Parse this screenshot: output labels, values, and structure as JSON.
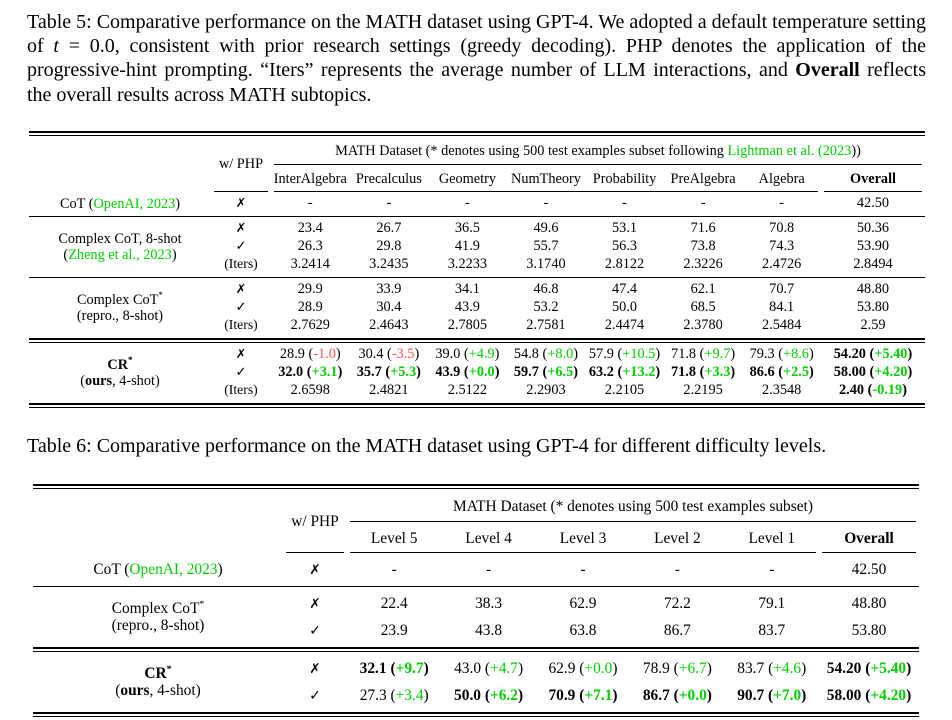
{
  "colors": {
    "green": "#00cf00",
    "red": "#ff5555",
    "text": "#000000",
    "background": "#ffffff"
  },
  "caption_table5": {
    "part1": "Table 5: Comparative performance on the MATH dataset using GPT-4. We adopted a default temperature setting of ",
    "t_var": "t",
    "part2": " = 0.0, consistent with prior research settings (greedy decoding). PHP denotes the application of the progressive-hint prompting. “Iters” represents the average number of LLM interactions, and ",
    "overall_word": "Overall",
    "part3": " reflects the overall results across MATH subtopics."
  },
  "caption_table6": "Table 6: Comparative performance on the MATH dataset using GPT-4 for different difficulty levels.",
  "marks": {
    "x": "✗",
    "c": "✓",
    "i": "(Iters)"
  },
  "table5": {
    "php_header": "w/ PHP",
    "dataset_header": [
      {
        "t": "MATH Dataset (* denotes using 500 test examples subset following "
      },
      {
        "t": "Lightman et al. (2023",
        "green": true
      },
      {
        "t": "))"
      }
    ],
    "columns": [
      "InterAlgebra",
      "Precalculus",
      "Geometry",
      "NumTheory",
      "Probability",
      "PreAlgebra",
      "Algebra"
    ],
    "overall_label": "Overall",
    "groups": [
      {
        "sep": "none",
        "label": [
          [
            {
              "t": "CoT ("
            },
            {
              "t": "OpenAI, 2023",
              "green": true
            },
            {
              "t": ")"
            }
          ]
        ],
        "rows": [
          {
            "m": "x",
            "cells": [
              "-",
              "-",
              "-",
              "-",
              "-",
              "-",
              "-",
              "42.50"
            ]
          }
        ]
      },
      {
        "sep": "single",
        "label": [
          [
            {
              "t": "Complex CoT, 8-shot"
            }
          ],
          [
            {
              "t": "("
            },
            {
              "t": "Zheng et al., 2023",
              "green": true
            },
            {
              "t": ")"
            }
          ]
        ],
        "rows": [
          {
            "m": "x",
            "cells": [
              "23.4",
              "26.7",
              "36.5",
              "49.6",
              "53.1",
              "71.6",
              "70.8",
              "50.36"
            ]
          },
          {
            "m": "c",
            "cells": [
              "26.3",
              "29.8",
              "41.9",
              "55.7",
              "56.3",
              "73.8",
              "74.3",
              "53.90"
            ]
          },
          {
            "m": "i",
            "cells": [
              "3.2414",
              "3.2435",
              "3.2233",
              "3.1740",
              "2.8122",
              "2.3226",
              "2.4726",
              "2.8494"
            ]
          }
        ]
      },
      {
        "sep": "single",
        "label": [
          [
            {
              "t": "Complex CoT"
            },
            {
              "t": "*",
              "sup": true
            }
          ],
          [
            {
              "t": "(repro., 8-shot)"
            }
          ]
        ],
        "rows": [
          {
            "m": "x",
            "cells": [
              "29.9",
              "33.9",
              "34.1",
              "46.8",
              "47.4",
              "62.1",
              "70.7",
              "48.80"
            ]
          },
          {
            "m": "c",
            "cells": [
              "28.9",
              "30.4",
              "43.9",
              "53.2",
              "50.0",
              "68.5",
              "84.1",
              "53.80"
            ]
          },
          {
            "m": "i",
            "cells": [
              "2.7629",
              "2.4643",
              "2.7805",
              "2.7581",
              "2.4474",
              "2.3780",
              "2.5484",
              "2.59"
            ]
          }
        ]
      },
      {
        "sep": "double",
        "label": [
          [
            {
              "t": "CR",
              "bold": true
            },
            {
              "t": "*",
              "sup": true,
              "bold": true
            }
          ],
          [
            {
              "t": "("
            },
            {
              "t": "ours",
              "bold": true
            },
            {
              "t": ", 4-shot)"
            }
          ]
        ],
        "rows": [
          {
            "m": "x",
            "cells": [
              {
                "v": "28.9",
                "d": "-1.0",
                "dc": "r"
              },
              {
                "v": "30.4",
                "d": "-3.5",
                "dc": "r"
              },
              {
                "v": "39.0",
                "d": "+4.9",
                "dc": "g"
              },
              {
                "v": "54.8",
                "d": "+8.0",
                "dc": "g"
              },
              {
                "v": "57.9",
                "d": "+10.5",
                "dc": "g"
              },
              {
                "v": "71.8",
                "d": "+9.7",
                "dc": "g"
              },
              {
                "v": "79.3",
                "d": "+8.6",
                "dc": "g"
              },
              {
                "v": "54.20",
                "b": true,
                "d": "+5.40",
                "dc": "g"
              }
            ]
          },
          {
            "m": "c",
            "cells": [
              {
                "v": "32.0",
                "b": true,
                "d": "+3.1",
                "dc": "g"
              },
              {
                "v": "35.7",
                "b": true,
                "d": "+5.3",
                "dc": "g"
              },
              {
                "v": "43.9",
                "b": true,
                "d": "+0.0",
                "dc": "g"
              },
              {
                "v": "59.7",
                "b": true,
                "d": "+6.5",
                "dc": "g"
              },
              {
                "v": "63.2",
                "b": true,
                "d": "+13.2",
                "dc": "g"
              },
              {
                "v": "71.8",
                "b": true,
                "d": "+3.3",
                "dc": "g"
              },
              {
                "v": "86.6",
                "b": true,
                "d": "+2.5",
                "dc": "g"
              },
              {
                "v": "58.00",
                "b": true,
                "d": "+4.20",
                "dc": "g"
              }
            ]
          },
          {
            "m": "i",
            "cells": [
              "2.6598",
              "2.4821",
              "2.5122",
              "2.2903",
              "2.2105",
              "2.2195",
              "2.3548",
              {
                "v": "2.40",
                "b": true,
                "d": "-0.19",
                "dc": "g"
              }
            ]
          }
        ]
      }
    ]
  },
  "table6": {
    "php_header": "w/ PHP",
    "dataset_header": [
      {
        "t": "MATH Dataset (* denotes using 500 test examples subset)"
      }
    ],
    "columns": [
      "Level 5",
      "Level 4",
      "Level 3",
      "Level 2",
      "Level 1"
    ],
    "overall_label": "Overall",
    "groups": [
      {
        "sep": "none",
        "label": [
          [
            {
              "t": "CoT ("
            },
            {
              "t": "OpenAI, 2023",
              "green": true
            },
            {
              "t": ")"
            }
          ]
        ],
        "rows": [
          {
            "m": "x",
            "cells": [
              "-",
              "-",
              "-",
              "-",
              "-",
              "42.50"
            ]
          }
        ]
      },
      {
        "sep": "single",
        "label": [
          [
            {
              "t": "Complex CoT"
            },
            {
              "t": "*",
              "sup": true
            }
          ],
          [
            {
              "t": "(repro., 8-shot)"
            }
          ]
        ],
        "rows": [
          {
            "m": "x",
            "cells": [
              "22.4",
              "38.3",
              "62.9",
              "72.2",
              "79.1",
              "48.80"
            ]
          },
          {
            "m": "c",
            "cells": [
              "23.9",
              "43.8",
              "63.8",
              "86.7",
              "83.7",
              "53.80"
            ]
          }
        ]
      },
      {
        "sep": "double",
        "label": [
          [
            {
              "t": "CR",
              "bold": true
            },
            {
              "t": "*",
              "sup": true,
              "bold": true
            }
          ],
          [
            {
              "t": "("
            },
            {
              "t": "ours",
              "bold": true
            },
            {
              "t": ", 4-shot)"
            }
          ]
        ],
        "rows": [
          {
            "m": "x",
            "cells": [
              {
                "v": "32.1",
                "b": true,
                "d": "+9.7",
                "dc": "g"
              },
              {
                "v": "43.0",
                "d": "+4.7",
                "dc": "g"
              },
              {
                "v": "62.9",
                "d": "+0.0",
                "dc": "g"
              },
              {
                "v": "78.9",
                "d": "+6.7",
                "dc": "g"
              },
              {
                "v": "83.7",
                "d": "+4.6",
                "dc": "g"
              },
              {
                "v": "54.20",
                "b": true,
                "d": "+5.40",
                "dc": "g"
              }
            ]
          },
          {
            "m": "c",
            "cells": [
              {
                "v": "27.3",
                "d": "+3.4",
                "dc": "g"
              },
              {
                "v": "50.0",
                "b": true,
                "d": "+6.2",
                "dc": "g"
              },
              {
                "v": "70.9",
                "b": true,
                "d": "+7.1",
                "dc": "g"
              },
              {
                "v": "86.7",
                "b": true,
                "d": "+0.0",
                "dc": "g"
              },
              {
                "v": "90.7",
                "b": true,
                "d": "+7.0",
                "dc": "g"
              },
              {
                "v": "58.00",
                "b": true,
                "d": "+4.20",
                "dc": "g"
              }
            ]
          }
        ]
      }
    ]
  }
}
